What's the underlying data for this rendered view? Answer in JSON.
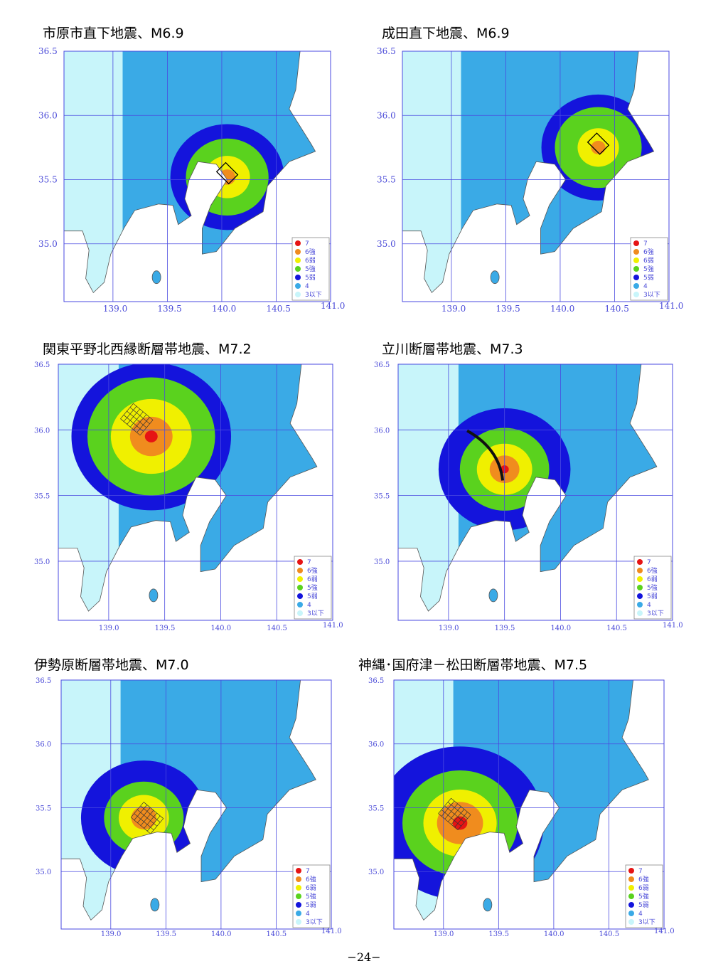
{
  "colors": {
    "ocean": "#ffffff",
    "land_3_or_less": "#c8f5fa",
    "intensity_4": "#3aaae6",
    "intensity_5_lower": "#1414dc",
    "intensity_5_upper": "#5ad21e",
    "intensity_6_lower": "#f0f000",
    "intensity_6_upper": "#f08c1e",
    "intensity_7": "#e61414",
    "grid": "#4a4ae0",
    "axis_label": "#4a4ad8",
    "boundary": "#555555"
  },
  "axis": {
    "lat_labels": [
      "36.5",
      "36.0",
      "35.5",
      "35.0"
    ],
    "lon_labels": [
      "139.0",
      "139.5",
      "140.0",
      "140.5",
      "141.0"
    ]
  },
  "legend": [
    {
      "label": "7",
      "color": "#e61414"
    },
    {
      "label": "6強",
      "color": "#f08c1e"
    },
    {
      "label": "6弱",
      "color": "#f0f000"
    },
    {
      "label": "5強",
      "color": "#5ad21e"
    },
    {
      "label": "5弱",
      "color": "#1414dc"
    },
    {
      "label": "4",
      "color": "#3aaae6"
    },
    {
      "label": "3以下",
      "color": "#c8f5fa"
    }
  ],
  "panels": [
    {
      "id": "ichihara",
      "title": "市原市直下地震、M6.9"
    },
    {
      "id": "narita",
      "title": "成田直下地震、M6.9"
    },
    {
      "id": "kanto-nw",
      "title": "関東平野北西縁断層帯地震、M7.2"
    },
    {
      "id": "tachikawa",
      "title": "立川断層帯地震、M7.3"
    },
    {
      "id": "isehara",
      "title": "伊勢原断層帯地震、M7.0"
    },
    {
      "id": "kozu-matsuda",
      "title": "神縄･国府津－松田断層帯地震、M7.5"
    }
  ],
  "page_number": "−24−"
}
